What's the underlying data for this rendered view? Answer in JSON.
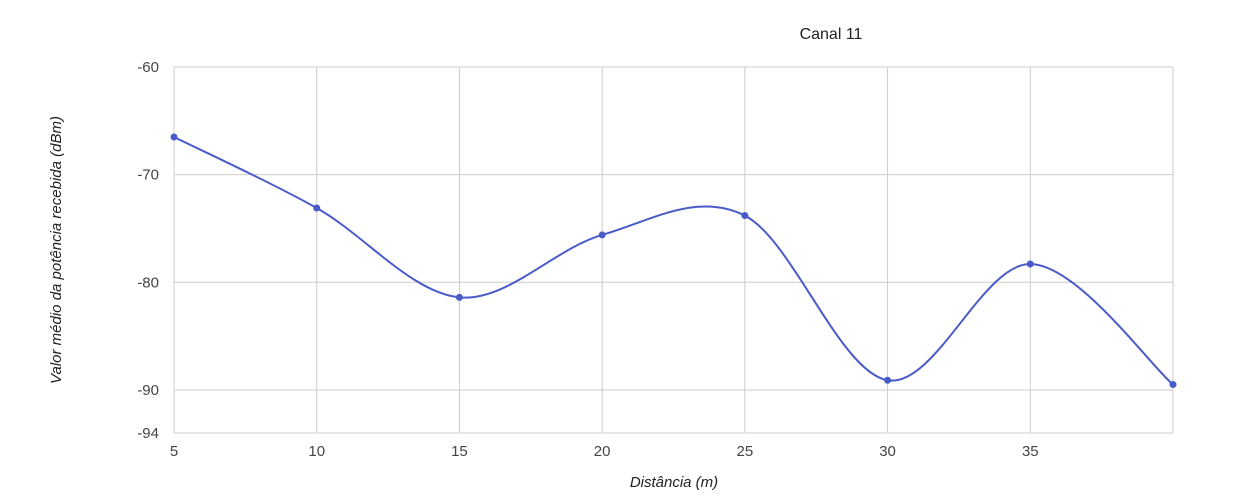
{
  "chart_data": {
    "type": "line",
    "title": "Canal 11",
    "xlabel": "Distância (m)",
    "ylabel": "Valor médio da potência recebida (dBm)",
    "x": [
      5,
      10,
      15,
      20,
      25,
      30,
      35,
      40
    ],
    "series": [
      {
        "values": [
          -66.5,
          -73.1,
          -81.4,
          -75.6,
          -73.8,
          -89.1,
          -78.3,
          -89.5
        ]
      }
    ],
    "xlim": [
      5,
      40
    ],
    "ylim": [
      -94,
      -60
    ],
    "x_ticks": [
      "5",
      "10",
      "15",
      "20",
      "25",
      "30",
      "35"
    ],
    "y_ticks": [
      "-60",
      "-70",
      "-80",
      "-90",
      "-94"
    ],
    "grid": true,
    "smooth": true,
    "legend": "none",
    "colors": {
      "line": "#4a5bc9",
      "grid": "#cccccc"
    }
  }
}
